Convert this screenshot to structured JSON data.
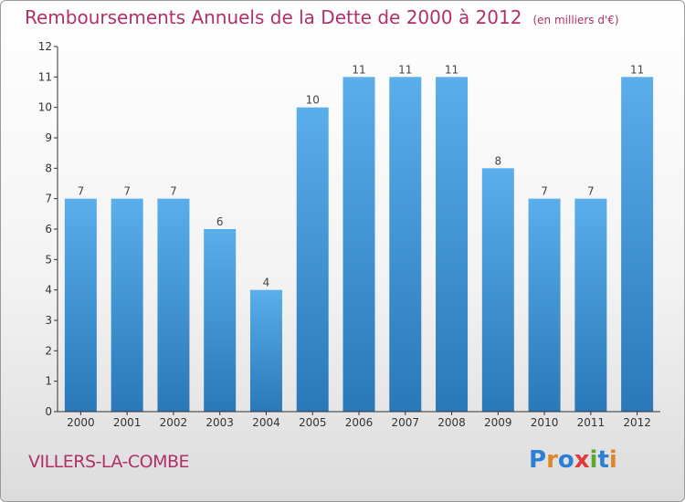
{
  "title": "Remboursements Annuels de la Dette de 2000 à 2012",
  "unit_note": "(en milliers d'€)",
  "commune": "VILLERS-LA-COMBE",
  "logo": {
    "text": "Proxiti",
    "colors": [
      "#2b7fd4",
      "#e0862a",
      "#2b7fd4",
      "#e03a3a",
      "#5aa832",
      "#2b7fd4",
      "#e0862a"
    ]
  },
  "colors": {
    "bar": "#4fa3e0",
    "bar_dark": "#2a78b8",
    "title": "#b0306a",
    "axis": "#333333"
  },
  "chart_data": {
    "type": "bar",
    "categories": [
      "2000",
      "2001",
      "2002",
      "2003",
      "2004",
      "2005",
      "2006",
      "2007",
      "2008",
      "2009",
      "2010",
      "2011",
      "2012"
    ],
    "values": [
      7,
      7,
      7,
      6,
      4,
      10,
      11,
      11,
      11,
      8,
      7,
      7,
      11
    ],
    "title": "Remboursements Annuels de la Dette de 2000 à 2012",
    "xlabel": "",
    "ylabel": "",
    "ylim": [
      0,
      12
    ],
    "yticks": [
      0,
      1,
      2,
      3,
      4,
      5,
      6,
      7,
      8,
      9,
      10,
      11,
      12
    ],
    "grid": false,
    "data_labels": true
  }
}
